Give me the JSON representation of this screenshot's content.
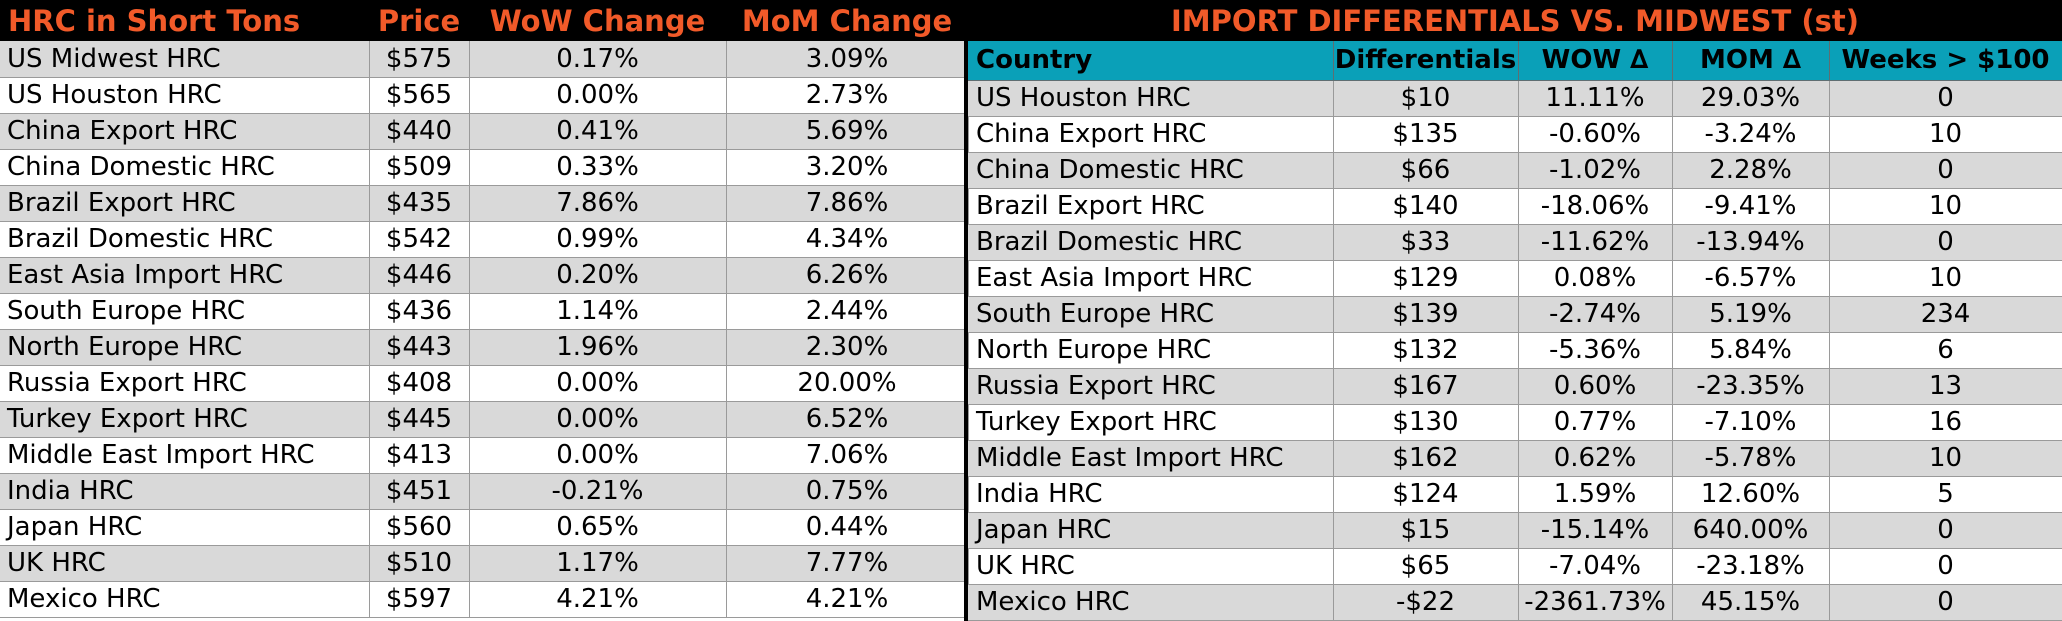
{
  "colors": {
    "header_bg": "#000000",
    "header_text": "#F15A29",
    "teal_header": "#0AA0B8",
    "row_shade": "#D9D9D9"
  },
  "left_table": {
    "headers": [
      "HRC in Short Tons",
      "Price",
      "WoW Change",
      "MoM Change"
    ],
    "rows": [
      [
        "US Midwest HRC",
        "$575",
        "0.17%",
        "3.09%"
      ],
      [
        "US Houston HRC",
        "$565",
        "0.00%",
        "2.73%"
      ],
      [
        "China Export HRC",
        "$440",
        "0.41%",
        "5.69%"
      ],
      [
        "China Domestic HRC",
        "$509",
        "0.33%",
        "3.20%"
      ],
      [
        "Brazil Export HRC",
        "$435",
        "7.86%",
        "7.86%"
      ],
      [
        "Brazil Domestic HRC",
        "$542",
        "0.99%",
        "4.34%"
      ],
      [
        "East Asia Import HRC",
        "$446",
        "0.20%",
        "6.26%"
      ],
      [
        "South Europe HRC",
        "$436",
        "1.14%",
        "2.44%"
      ],
      [
        "North Europe HRC",
        "$443",
        "1.96%",
        "2.30%"
      ],
      [
        "Russia Export HRC",
        "$408",
        "0.00%",
        "20.00%"
      ],
      [
        "Turkey Export HRC",
        "$445",
        "0.00%",
        "6.52%"
      ],
      [
        "Middle East Import HRC",
        "$413",
        "0.00%",
        "7.06%"
      ],
      [
        "India HRC",
        "$451",
        "-0.21%",
        "0.75%"
      ],
      [
        "Japan HRC",
        "$560",
        "0.65%",
        "0.44%"
      ],
      [
        "UK HRC",
        "$510",
        "1.17%",
        "7.77%"
      ],
      [
        "Mexico HRC",
        "$597",
        "4.21%",
        "4.21%"
      ]
    ]
  },
  "right_table": {
    "title": "IMPORT DIFFERENTIALS VS. MIDWEST (st)",
    "headers": [
      "Country",
      "Differentials",
      "WOW ∆",
      "MOM ∆",
      "Weeks > $100"
    ],
    "rows": [
      [
        "US Houston HRC",
        "$10",
        "11.11%",
        "29.03%",
        "0"
      ],
      [
        "China Export HRC",
        "$135",
        "-0.60%",
        "-3.24%",
        "10"
      ],
      [
        "China Domestic HRC",
        "$66",
        "-1.02%",
        "2.28%",
        "0"
      ],
      [
        "Brazil Export HRC",
        "$140",
        "-18.06%",
        "-9.41%",
        "10"
      ],
      [
        "Brazil Domestic HRC",
        "$33",
        "-11.62%",
        "-13.94%",
        "0"
      ],
      [
        "East Asia Import HRC",
        "$129",
        "0.08%",
        "-6.57%",
        "10"
      ],
      [
        "South Europe HRC",
        "$139",
        "-2.74%",
        "5.19%",
        "234"
      ],
      [
        "North Europe HRC",
        "$132",
        "-5.36%",
        "5.84%",
        "6"
      ],
      [
        "Russia Export HRC",
        "$167",
        "0.60%",
        "-23.35%",
        "13"
      ],
      [
        "Turkey Export HRC",
        "$130",
        "0.77%",
        "-7.10%",
        "16"
      ],
      [
        "Middle East Import HRC",
        "$162",
        "0.62%",
        "-5.78%",
        "10"
      ],
      [
        "India HRC",
        "$124",
        "1.59%",
        "12.60%",
        "5"
      ],
      [
        "Japan HRC",
        "$15",
        "-15.14%",
        "640.00%",
        "0"
      ],
      [
        "UK HRC",
        "$65",
        "-7.04%",
        "-23.18%",
        "0"
      ],
      [
        "Mexico HRC",
        "-$22",
        "-2361.73%",
        "45.15%",
        "0"
      ]
    ]
  }
}
